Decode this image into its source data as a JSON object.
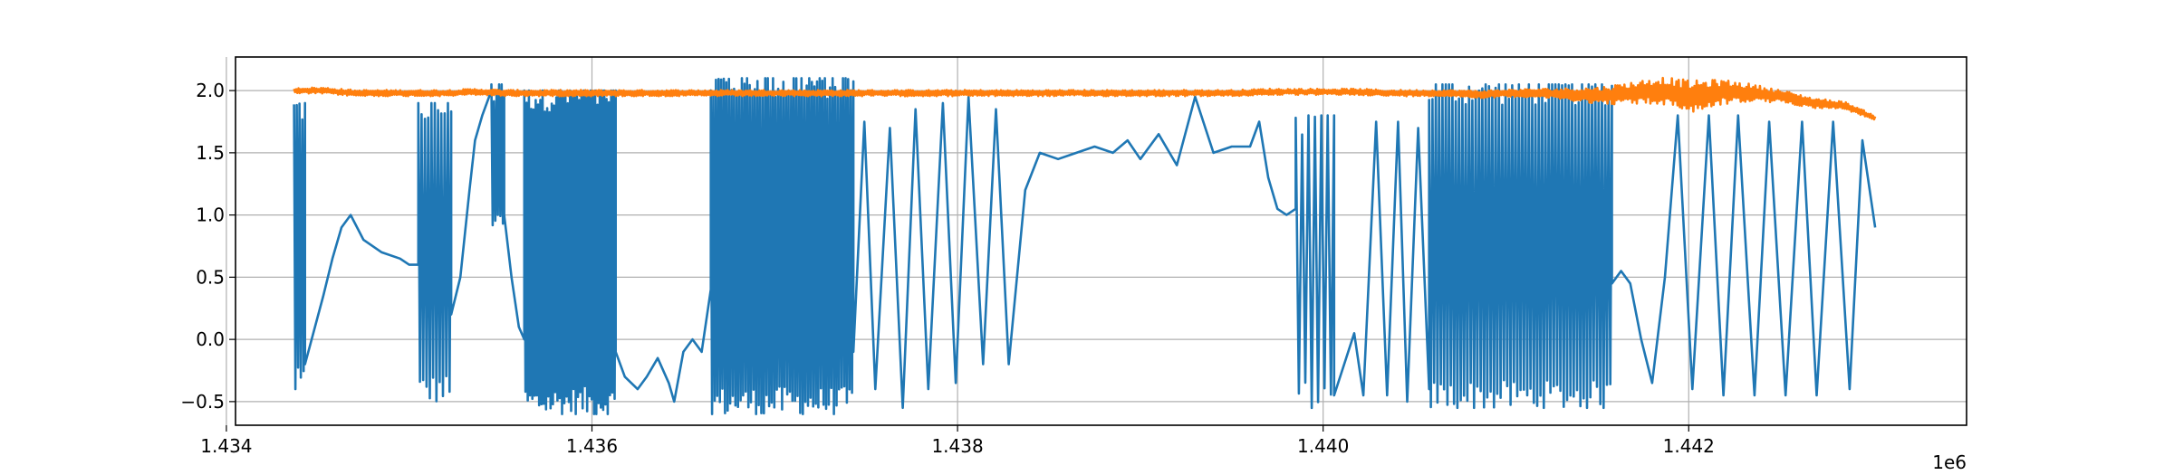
{
  "chart_data": {
    "type": "line",
    "title": "",
    "xlabel": "",
    "ylabel": "",
    "x_offset_label": "1e6",
    "xlim": [
      1.43405,
      1.44352
    ],
    "ylim": [
      -0.69,
      2.27
    ],
    "grid": true,
    "x_ticks": [
      1.434,
      1.436,
      1.438,
      1.44,
      1.442
    ],
    "x_tick_labels": [
      "1.434",
      "1.436",
      "1.438",
      "1.440",
      "1.442"
    ],
    "y_ticks": [
      -0.5,
      0.0,
      0.5,
      1.0,
      1.5,
      2.0
    ],
    "y_tick_labels": [
      "−0.5",
      "0.0",
      "0.5",
      "1.0",
      "1.5",
      "2.0"
    ],
    "series": [
      {
        "color": "#1f77b4",
        "segments": [
          {
            "x0": 1.43437,
            "x1": 1.43443,
            "lo": -0.35,
            "hi": 1.85,
            "cycles": 4
          },
          {
            "x": [
              1.43443,
              1.43453,
              1.43458,
              1.43463,
              1.43468,
              1.43475,
              1.43485,
              1.43495,
              1.435,
              1.43505
            ],
            "y": [
              -0.2,
              0.35,
              0.65,
              0.9,
              1.0,
              0.8,
              0.7,
              0.65,
              0.6,
              0.6
            ]
          },
          {
            "x0": 1.43505,
            "x1": 1.43523,
            "lo": -0.4,
            "hi": 1.85,
            "cycles": 10
          },
          {
            "x": [
              1.43523,
              1.43528,
              1.43533,
              1.43536,
              1.4354,
              1.43545
            ],
            "y": [
              0.2,
              0.5,
              1.2,
              1.6,
              1.8,
              2.0
            ]
          },
          {
            "x0": 1.43545,
            "x1": 1.43552,
            "lo": 1.0,
            "hi": 2.0,
            "cycles": 5
          },
          {
            "x": [
              1.43552,
              1.43556,
              1.4356,
              1.43563
            ],
            "y": [
              1.0,
              0.5,
              0.1,
              0.0
            ]
          },
          {
            "x0": 1.43563,
            "x1": 1.43613,
            "lo": -0.5,
            "hi": 1.95,
            "cycles": 40
          },
          {
            "x": [
              1.43613,
              1.43618,
              1.43625,
              1.4363,
              1.43636,
              1.43642,
              1.43645,
              1.4365,
              1.43655,
              1.4366,
              1.43665
            ],
            "y": [
              -0.1,
              -0.3,
              -0.4,
              -0.3,
              -0.15,
              -0.35,
              -0.5,
              -0.1,
              0.0,
              -0.1,
              0.4
            ]
          },
          {
            "x0": 1.43665,
            "x1": 1.43743,
            "lo": -0.5,
            "hi": 2.05,
            "cycles": 55
          },
          {
            "x": [
              1.43743,
              1.43749,
              1.43755,
              1.43763,
              1.4377,
              1.43777,
              1.43784,
              1.43792,
              1.43799,
              1.43806,
              1.43814,
              1.43821,
              1.43828,
              1.43837
            ],
            "y": [
              -0.1,
              1.75,
              -0.4,
              1.7,
              -0.55,
              1.85,
              -0.4,
              1.9,
              -0.35,
              1.95,
              -0.2,
              1.85,
              -0.2,
              1.2
            ]
          },
          {
            "x": [
              1.43837,
              1.43845,
              1.43855,
              1.43865,
              1.43875,
              1.43885,
              1.43893,
              1.439,
              1.4391,
              1.4392,
              1.4393,
              1.4394,
              1.4395,
              1.4396,
              1.43965,
              1.4397,
              1.43975,
              1.4398,
              1.43985
            ],
            "y": [
              1.2,
              1.5,
              1.45,
              1.5,
              1.55,
              1.5,
              1.6,
              1.45,
              1.65,
              1.4,
              1.95,
              1.5,
              1.55,
              1.55,
              1.75,
              1.3,
              1.05,
              1.0,
              1.05
            ]
          },
          {
            "x0": 1.43985,
            "x1": 1.44006,
            "lo": -0.45,
            "hi": 1.75,
            "cycles": 6
          },
          {
            "x": [
              1.44006,
              1.44017,
              1.44022,
              1.44029,
              1.44035,
              1.44041,
              1.44046,
              1.44052,
              1.44058
            ],
            "y": [
              -0.45,
              0.05,
              -0.45,
              1.75,
              -0.45,
              1.75,
              -0.5,
              1.7,
              -0.4
            ]
          },
          {
            "x0": 1.44058,
            "x1": 1.44158,
            "lo": -0.45,
            "hi": 2.0,
            "cycles": 55
          },
          {
            "x": [
              1.44158,
              1.44163,
              1.44168,
              1.44174,
              1.4418,
              1.44187,
              1.44194,
              1.44202,
              1.44211,
              1.44219,
              1.44227,
              1.44236,
              1.44244,
              1.44253,
              1.44262,
              1.4427,
              1.44279,
              1.44288,
              1.44295,
              1.44302
            ],
            "y": [
              0.45,
              0.55,
              0.45,
              0.0,
              -0.35,
              0.5,
              1.8,
              -0.4,
              1.8,
              -0.45,
              1.8,
              -0.45,
              1.75,
              -0.45,
              1.75,
              -0.45,
              1.75,
              -0.4,
              1.6,
              0.9
            ]
          }
        ]
      },
      {
        "color": "#ff7f0e",
        "x_start": 1.43437,
        "x_end": 1.44302,
        "y": [
          2.0,
          2.0,
          1.98,
          1.98,
          1.98,
          1.98,
          1.99,
          1.98,
          1.98,
          1.98,
          1.98,
          1.98,
          1.98,
          1.98,
          1.98,
          1.98,
          1.98,
          1.98,
          1.98,
          1.98,
          1.98,
          1.98,
          1.98,
          1.98,
          1.98,
          1.98,
          1.98,
          1.98,
          1.98,
          1.98,
          1.98,
          1.98,
          1.99,
          1.99,
          1.99,
          1.99,
          1.98,
          1.98,
          1.98,
          1.97,
          1.98,
          1.98,
          1.97,
          1.96,
          1.98,
          2.0,
          1.95,
          1.99,
          1.98,
          1.95,
          1.9,
          1.88,
          1.78
        ],
        "noise": [
          0.025,
          0.025,
          0.025,
          0.025,
          0.025,
          0.025,
          0.025,
          0.025,
          0.025,
          0.025,
          0.025,
          0.025,
          0.025,
          0.025,
          0.025,
          0.025,
          0.025,
          0.025,
          0.025,
          0.025,
          0.025,
          0.025,
          0.025,
          0.025,
          0.025,
          0.025,
          0.025,
          0.025,
          0.025,
          0.025,
          0.025,
          0.025,
          0.025,
          0.025,
          0.025,
          0.025,
          0.025,
          0.025,
          0.025,
          0.03,
          0.03,
          0.035,
          0.05,
          0.07,
          0.09,
          0.11,
          0.13,
          0.1,
          0.07,
          0.05,
          0.04,
          0.03,
          0.02
        ]
      }
    ]
  }
}
